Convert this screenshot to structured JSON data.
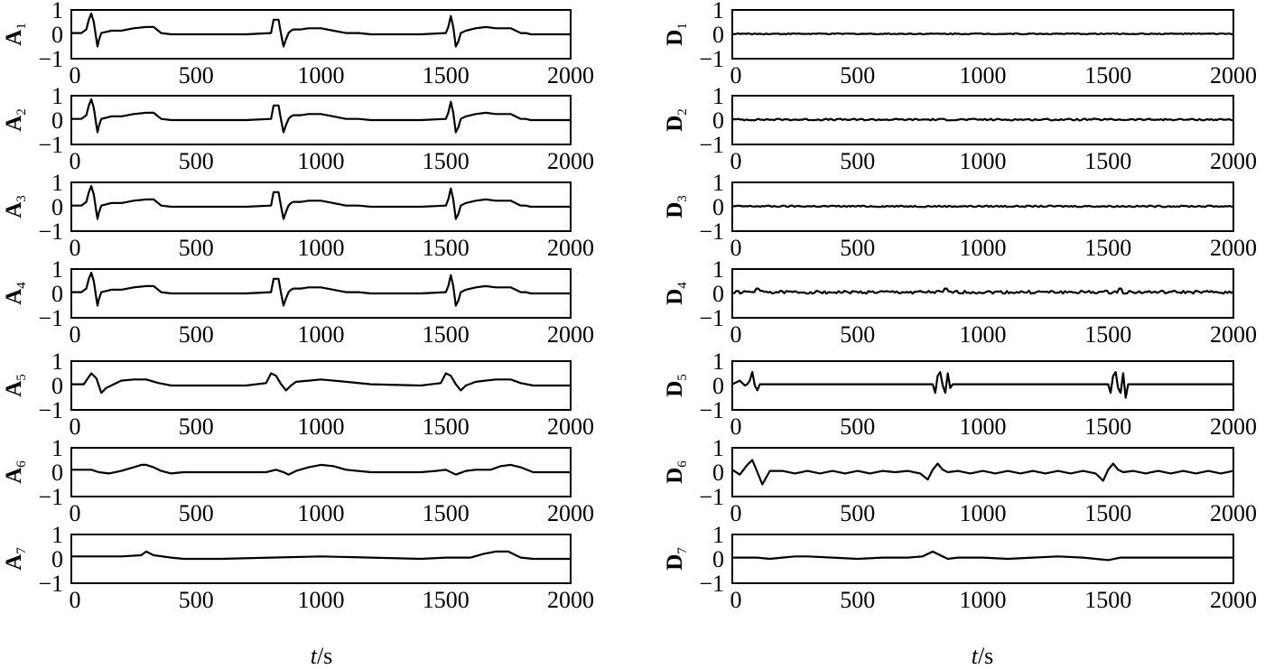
{
  "chart_data": [
    {
      "type": "line",
      "panel": "A1",
      "ylabel": "A",
      "ylabel_sub": "1",
      "xticks": [
        "0",
        "500",
        "1000",
        "1500",
        "2000"
      ],
      "yticks": [
        "1",
        "0",
        "−1"
      ],
      "xlim": [
        0,
        2000
      ],
      "ylim": [
        -1,
        1
      ],
      "x": [
        0,
        40,
        60,
        70,
        80,
        90,
        100,
        105,
        110,
        120,
        140,
        160,
        200,
        250,
        300,
        330,
        360,
        400,
        600,
        700,
        800,
        810,
        820,
        830,
        840,
        850,
        860,
        870,
        880,
        890,
        920,
        950,
        1000,
        1050,
        1100,
        1150,
        1200,
        1400,
        1500,
        1510,
        1520,
        1530,
        1540,
        1550,
        1560,
        1580,
        1620,
        1660,
        1700,
        1760,
        1800,
        1820,
        1840,
        1900,
        2000
      ],
      "y": [
        0.05,
        0.05,
        0.2,
        0.6,
        0.85,
        0.5,
        -0.2,
        -0.5,
        -0.25,
        0.05,
        0.1,
        0.15,
        0.15,
        0.25,
        0.3,
        0.3,
        0.05,
        0.0,
        0.0,
        0.0,
        0.05,
        0.6,
        0.6,
        0.6,
        0.0,
        -0.5,
        -0.2,
        0.05,
        0.15,
        0.2,
        0.2,
        0.25,
        0.25,
        0.15,
        0.05,
        0.05,
        0.0,
        0.0,
        0.05,
        0.3,
        0.75,
        0.3,
        -0.5,
        -0.3,
        0.05,
        0.15,
        0.25,
        0.3,
        0.25,
        0.25,
        0.05,
        0.05,
        0.0,
        0.0,
        0.0
      ]
    },
    {
      "type": "line",
      "panel": "D1",
      "ylabel": "D",
      "ylabel_sub": "1",
      "xticks": [
        "0",
        "500",
        "1000",
        "1500",
        "2000"
      ],
      "yticks": [
        "1",
        "0",
        "−1"
      ],
      "xlim": [
        0,
        2000
      ],
      "ylim": [
        -1,
        1
      ],
      "x": [
        0,
        2000
      ],
      "y": [
        0.02,
        0.02
      ],
      "noise": 0.04,
      "spikes": []
    },
    {
      "type": "line",
      "panel": "A2",
      "ylabel": "A",
      "ylabel_sub": "2",
      "xticks": [
        "0",
        "500",
        "1000",
        "1500",
        "2000"
      ],
      "yticks": [
        "1",
        "0",
        "−1"
      ],
      "xlim": [
        0,
        2000
      ],
      "ylim": [
        -1,
        1
      ],
      "x": [
        0,
        40,
        60,
        70,
        80,
        90,
        100,
        105,
        110,
        120,
        140,
        160,
        200,
        250,
        300,
        330,
        360,
        400,
        600,
        700,
        800,
        810,
        820,
        830,
        840,
        850,
        860,
        870,
        880,
        890,
        920,
        950,
        1000,
        1050,
        1100,
        1150,
        1200,
        1400,
        1500,
        1510,
        1520,
        1530,
        1540,
        1550,
        1560,
        1580,
        1620,
        1660,
        1700,
        1760,
        1800,
        1820,
        1840,
        1900,
        2000
      ],
      "y": [
        0.05,
        0.05,
        0.2,
        0.6,
        0.85,
        0.5,
        -0.2,
        -0.5,
        -0.25,
        0.05,
        0.1,
        0.15,
        0.15,
        0.25,
        0.3,
        0.3,
        0.05,
        0.0,
        0.0,
        0.0,
        0.05,
        0.6,
        0.6,
        0.6,
        0.0,
        -0.5,
        -0.2,
        0.05,
        0.15,
        0.2,
        0.2,
        0.25,
        0.25,
        0.15,
        0.05,
        0.05,
        0.0,
        0.0,
        0.05,
        0.3,
        0.75,
        0.3,
        -0.5,
        -0.3,
        0.05,
        0.15,
        0.25,
        0.3,
        0.25,
        0.25,
        0.05,
        0.05,
        0.0,
        0.0,
        0.0
      ]
    },
    {
      "type": "line",
      "panel": "D2",
      "ylabel": "D",
      "ylabel_sub": "2",
      "xticks": [
        "0",
        "500",
        "1000",
        "1500",
        "2000"
      ],
      "yticks": [
        "1",
        "0",
        "−1"
      ],
      "xlim": [
        0,
        2000
      ],
      "ylim": [
        -1,
        1
      ],
      "x": [
        0,
        2000
      ],
      "y": [
        0.02,
        0.02
      ],
      "noise": 0.07,
      "spikes": []
    },
    {
      "type": "line",
      "panel": "A3",
      "ylabel": "A",
      "ylabel_sub": "3",
      "xticks": [
        "0",
        "500",
        "1000",
        "1500",
        "2000"
      ],
      "yticks": [
        "1",
        "0",
        "−1"
      ],
      "xlim": [
        0,
        2000
      ],
      "ylim": [
        -1,
        1
      ],
      "x": [
        0,
        40,
        60,
        70,
        80,
        90,
        100,
        105,
        110,
        120,
        140,
        160,
        200,
        250,
        300,
        330,
        360,
        400,
        600,
        700,
        800,
        810,
        820,
        830,
        840,
        850,
        860,
        870,
        880,
        890,
        920,
        950,
        1000,
        1050,
        1100,
        1150,
        1200,
        1400,
        1500,
        1510,
        1520,
        1530,
        1540,
        1550,
        1560,
        1580,
        1620,
        1660,
        1700,
        1760,
        1800,
        1820,
        1840,
        1900,
        2000
      ],
      "y": [
        0.05,
        0.05,
        0.2,
        0.6,
        0.85,
        0.5,
        -0.2,
        -0.5,
        -0.25,
        0.05,
        0.1,
        0.15,
        0.15,
        0.25,
        0.3,
        0.3,
        0.05,
        0.0,
        0.0,
        0.0,
        0.05,
        0.6,
        0.6,
        0.6,
        0.0,
        -0.5,
        -0.2,
        0.05,
        0.15,
        0.2,
        0.2,
        0.25,
        0.25,
        0.15,
        0.05,
        0.05,
        0.0,
        0.0,
        0.05,
        0.3,
        0.75,
        0.3,
        -0.5,
        -0.3,
        0.05,
        0.15,
        0.25,
        0.3,
        0.25,
        0.25,
        0.05,
        0.05,
        0.0,
        0.0,
        0.0
      ]
    },
    {
      "type": "line",
      "panel": "D3",
      "ylabel": "D",
      "ylabel_sub": "3",
      "xticks": [
        "0",
        "500",
        "1000",
        "1500",
        "2000"
      ],
      "yticks": [
        "1",
        "0",
        "−1"
      ],
      "xlim": [
        0,
        2000
      ],
      "ylim": [
        -1,
        1
      ],
      "x": [
        0,
        2000
      ],
      "y": [
        0.02,
        0.02
      ],
      "noise": 0.06,
      "spikes": []
    },
    {
      "type": "line",
      "panel": "A4",
      "ylabel": "A",
      "ylabel_sub": "4",
      "xticks": [
        "0",
        "500",
        "1000",
        "1500",
        "2000"
      ],
      "yticks": [
        "1",
        "0",
        "−1"
      ],
      "xlim": [
        0,
        2000
      ],
      "ylim": [
        -1,
        1
      ],
      "x": [
        0,
        40,
        60,
        70,
        80,
        90,
        100,
        105,
        110,
        120,
        140,
        160,
        200,
        250,
        300,
        330,
        360,
        400,
        600,
        700,
        800,
        810,
        820,
        830,
        840,
        850,
        860,
        870,
        880,
        890,
        920,
        950,
        1000,
        1050,
        1100,
        1150,
        1200,
        1400,
        1500,
        1510,
        1520,
        1530,
        1540,
        1550,
        1560,
        1580,
        1620,
        1660,
        1700,
        1760,
        1800,
        1820,
        1840,
        1900,
        2000
      ],
      "y": [
        0.05,
        0.05,
        0.2,
        0.6,
        0.85,
        0.5,
        -0.2,
        -0.5,
        -0.25,
        0.05,
        0.1,
        0.15,
        0.15,
        0.25,
        0.3,
        0.3,
        0.05,
        0.0,
        0.0,
        0.0,
        0.05,
        0.6,
        0.6,
        0.6,
        0.0,
        -0.5,
        -0.2,
        0.05,
        0.15,
        0.2,
        0.2,
        0.25,
        0.25,
        0.15,
        0.05,
        0.05,
        0.0,
        0.0,
        0.05,
        0.3,
        0.75,
        0.3,
        -0.5,
        -0.3,
        0.05,
        0.15,
        0.25,
        0.3,
        0.25,
        0.25,
        0.05,
        0.05,
        0.0,
        0.0,
        0.0
      ]
    },
    {
      "type": "line",
      "panel": "D4",
      "ylabel": "D",
      "ylabel_sub": "4",
      "xticks": [
        "0",
        "500",
        "1000",
        "1500",
        "2000"
      ],
      "yticks": [
        "1",
        "0",
        "−1"
      ],
      "xlim": [
        0,
        2000
      ],
      "ylim": [
        -1,
        1
      ],
      "x": [
        0,
        2000
      ],
      "y": [
        0.05,
        0.05
      ],
      "noise": 0.12,
      "spikes": [
        [
          100,
          0.2
        ],
        [
          850,
          0.2
        ],
        [
          1550,
          0.2
        ]
      ]
    },
    {
      "type": "line",
      "panel": "A5",
      "ylabel": "A",
      "ylabel_sub": "5",
      "xticks": [
        "0",
        "500",
        "1000",
        "1500",
        "2000"
      ],
      "yticks": [
        "1",
        "0",
        "−1"
      ],
      "xlim": [
        0,
        2000
      ],
      "ylim": [
        -1,
        1
      ],
      "x": [
        0,
        50,
        80,
        100,
        120,
        140,
        170,
        200,
        250,
        300,
        350,
        400,
        450,
        600,
        700,
        780,
        800,
        820,
        840,
        860,
        880,
        900,
        950,
        1000,
        1100,
        1200,
        1400,
        1480,
        1500,
        1520,
        1540,
        1560,
        1580,
        1620,
        1700,
        1760,
        1800,
        1850,
        1900,
        2000
      ],
      "y": [
        0.05,
        0.05,
        0.5,
        0.3,
        -0.3,
        -0.1,
        0.05,
        0.2,
        0.25,
        0.25,
        0.1,
        0.0,
        0.0,
        0.0,
        0.0,
        0.1,
        0.5,
        0.4,
        0.05,
        -0.2,
        0.0,
        0.15,
        0.2,
        0.25,
        0.15,
        0.05,
        0.0,
        0.1,
        0.5,
        0.4,
        0.05,
        -0.2,
        0.0,
        0.15,
        0.25,
        0.25,
        0.1,
        0.0,
        0.0,
        0.0
      ]
    },
    {
      "type": "line",
      "panel": "D5",
      "ylabel": "D",
      "ylabel_sub": "5",
      "xticks": [
        "0",
        "500",
        "1000",
        "1500",
        "2000"
      ],
      "yticks": [
        "1",
        "0",
        "−1"
      ],
      "xlim": [
        0,
        2000
      ],
      "ylim": [
        -1,
        1
      ],
      "x": [
        0,
        30,
        50,
        60,
        70,
        80,
        90,
        100,
        110,
        130,
        800,
        810,
        820,
        830,
        840,
        850,
        860,
        870,
        880,
        890,
        900,
        1500,
        1510,
        1520,
        1530,
        1540,
        1550,
        1560,
        1570,
        1580,
        1590,
        1600,
        2000
      ],
      "y": [
        0.05,
        0.2,
        0.0,
        0.05,
        0.2,
        0.55,
        0.0,
        -0.2,
        0.05,
        0.05,
        0.05,
        -0.3,
        0.4,
        0.55,
        0.0,
        -0.3,
        0.5,
        -0.1,
        0.05,
        0.05,
        0.05,
        0.05,
        -0.3,
        0.4,
        0.55,
        -0.1,
        -0.3,
        0.5,
        -0.5,
        0.05,
        0.05,
        0.05,
        0.05
      ]
    },
    {
      "type": "line",
      "panel": "A6",
      "ylabel": "A",
      "ylabel_sub": "6",
      "xticks": [
        "0",
        "500",
        "1000",
        "1500",
        "2000"
      ],
      "yticks": [
        "1",
        "0",
        "−1"
      ],
      "xlim": [
        0,
        2000
      ],
      "ylim": [
        -1,
        1
      ],
      "x": [
        0,
        80,
        110,
        150,
        200,
        250,
        280,
        300,
        330,
        360,
        400,
        450,
        600,
        700,
        780,
        820,
        850,
        870,
        900,
        950,
        1000,
        1050,
        1100,
        1200,
        1400,
        1460,
        1500,
        1540,
        1580,
        1620,
        1680,
        1720,
        1760,
        1800,
        1850,
        1900,
        2000
      ],
      "y": [
        0.1,
        0.1,
        0.0,
        -0.05,
        0.05,
        0.2,
        0.3,
        0.3,
        0.2,
        0.05,
        -0.05,
        0.0,
        0.0,
        0.0,
        0.0,
        0.1,
        0.0,
        -0.1,
        0.05,
        0.2,
        0.3,
        0.25,
        0.1,
        0.0,
        0.0,
        0.05,
        0.1,
        -0.1,
        0.05,
        0.1,
        0.1,
        0.25,
        0.3,
        0.2,
        0.0,
        0.0,
        0.0
      ]
    },
    {
      "type": "line",
      "panel": "D6",
      "ylabel": "D",
      "ylabel_sub": "6",
      "xticks": [
        "0",
        "500",
        "1000",
        "1500",
        "2000"
      ],
      "yticks": [
        "1",
        "0",
        "−1"
      ],
      "xlim": [
        0,
        2000
      ],
      "ylim": [
        -1,
        1
      ],
      "x": [
        0,
        30,
        60,
        80,
        100,
        120,
        150,
        200,
        250,
        300,
        350,
        400,
        450,
        500,
        550,
        600,
        650,
        700,
        750,
        780,
        800,
        820,
        840,
        860,
        900,
        950,
        1000,
        1050,
        1100,
        1150,
        1200,
        1250,
        1300,
        1350,
        1400,
        1450,
        1480,
        1500,
        1520,
        1540,
        1560,
        1600,
        1650,
        1700,
        1750,
        1800,
        1850,
        1900,
        1950,
        2000
      ],
      "y": [
        0.1,
        -0.1,
        0.3,
        0.5,
        0.0,
        -0.5,
        0.05,
        0.05,
        -0.05,
        0.05,
        -0.05,
        0.05,
        -0.05,
        0.05,
        -0.05,
        0.05,
        0.0,
        0.05,
        -0.05,
        -0.3,
        0.1,
        0.35,
        0.1,
        0.0,
        0.05,
        -0.05,
        0.05,
        -0.05,
        0.05,
        -0.05,
        0.05,
        -0.05,
        0.05,
        -0.05,
        0.05,
        -0.05,
        -0.35,
        0.1,
        0.35,
        0.1,
        0.0,
        0.05,
        -0.05,
        0.05,
        -0.05,
        0.05,
        -0.05,
        0.05,
        -0.05,
        0.05
      ]
    },
    {
      "type": "line",
      "panel": "A7",
      "ylabel": "A",
      "ylabel_sub": "7",
      "xticks": [
        "0",
        "500",
        "1000",
        "1500",
        "2000"
      ],
      "yticks": [
        "1",
        "0",
        "−1"
      ],
      "xlim": [
        0,
        2000
      ],
      "ylim": [
        -1,
        1
      ],
      "x": [
        0,
        200,
        280,
        300,
        330,
        400,
        450,
        600,
        800,
        1000,
        1200,
        1400,
        1500,
        1600,
        1650,
        1700,
        1750,
        1800,
        1850,
        1900,
        2000
      ],
      "y": [
        0.1,
        0.1,
        0.15,
        0.3,
        0.15,
        0.05,
        0.0,
        0.0,
        0.05,
        0.1,
        0.05,
        0.0,
        0.05,
        0.05,
        0.2,
        0.3,
        0.3,
        0.05,
        0.0,
        0.0,
        0.0
      ]
    },
    {
      "type": "line",
      "panel": "D7",
      "ylabel": "D",
      "ylabel_sub": "7",
      "xticks": [
        "0",
        "500",
        "1000",
        "1500",
        "2000"
      ],
      "yticks": [
        "1",
        "0",
        "−1"
      ],
      "xlim": [
        0,
        2000
      ],
      "ylim": [
        -1,
        1
      ],
      "x": [
        0,
        100,
        150,
        200,
        250,
        300,
        400,
        500,
        600,
        700,
        760,
        800,
        830,
        860,
        900,
        1000,
        1100,
        1200,
        1300,
        1400,
        1450,
        1500,
        1550,
        1600,
        1700,
        1800,
        1900,
        2000
      ],
      "y": [
        0.05,
        0.05,
        0.0,
        0.05,
        0.1,
        0.1,
        0.05,
        0.0,
        0.05,
        0.05,
        0.1,
        0.3,
        0.15,
        0.0,
        0.05,
        0.05,
        0.0,
        0.05,
        0.1,
        0.05,
        0.0,
        -0.05,
        0.05,
        0.05,
        0.05,
        0.05,
        0.05,
        0.05
      ]
    }
  ],
  "xlabel_left": {
    "var": "t",
    "unit": "/s"
  },
  "xlabel_right": {
    "var": "t",
    "unit": "/s"
  }
}
